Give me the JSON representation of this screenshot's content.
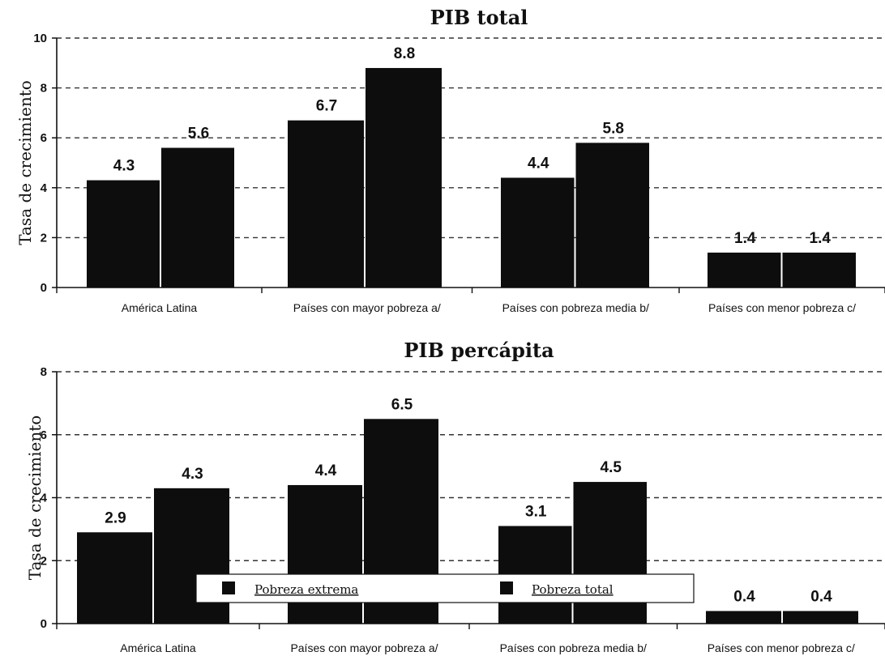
{
  "chart_data": [
    {
      "type": "bar",
      "title": "PIB total",
      "ylabel": "Tasa de crecimiento",
      "xlabel": "",
      "ylim": [
        0,
        10
      ],
      "yticks": [
        "0",
        "2",
        "4",
        "6",
        "8",
        "10"
      ],
      "grid": "horizontal dashed",
      "categories": [
        "América Latina",
        "Países con mayor pobreza a/",
        "Países con pobreza media b/",
        "Países con menor pobreza c/"
      ],
      "series": [
        {
          "name": "Pobreza extrema",
          "values": [
            4.3,
            6.7,
            4.4,
            1.4
          ],
          "labels": [
            "4.3",
            "6.7",
            "4.4",
            "1.4"
          ]
        },
        {
          "name": "Pobreza total",
          "values": [
            5.6,
            8.8,
            5.8,
            1.4
          ],
          "labels": [
            "5.6",
            "8.8",
            "5.8",
            "1.4"
          ]
        }
      ]
    },
    {
      "type": "bar",
      "title": "PIB percápita",
      "ylabel": "Tasa de crecimiento",
      "xlabel": "",
      "ylim": [
        0,
        8
      ],
      "yticks": [
        "0",
        "2",
        "4",
        "6",
        "8"
      ],
      "grid": "horizontal dashed",
      "legend_position": "bottom-center",
      "categories": [
        "América Latina",
        "Países con mayor pobreza a/",
        "Países con pobreza media b/",
        "Países con menor pobreza c/"
      ],
      "series": [
        {
          "name": "Pobreza extrema",
          "values": [
            2.9,
            4.4,
            3.1,
            0.4
          ],
          "labels": [
            "2.9",
            "4.4",
            "3.1",
            "0.4"
          ]
        },
        {
          "name": "Pobreza total",
          "values": [
            4.3,
            6.5,
            4.5,
            0.4
          ],
          "labels": [
            "4.3",
            "6.5",
            "4.5",
            "0.4"
          ]
        }
      ]
    }
  ],
  "colors": {
    "bar": "#0d0d0d",
    "grid": "#333333",
    "axis": "#111111"
  }
}
